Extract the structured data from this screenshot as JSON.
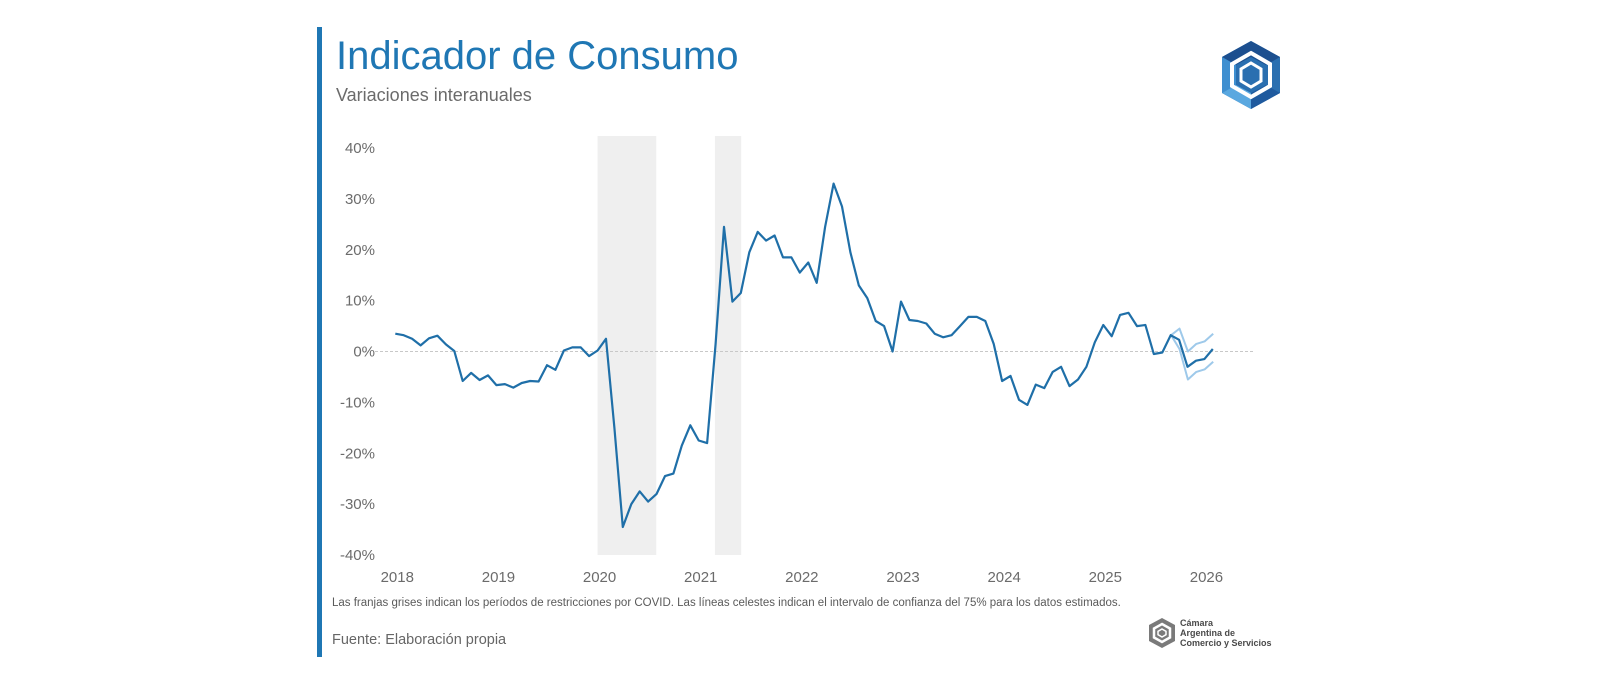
{
  "header": {
    "title": "Indicador de Consumo",
    "subtitle": "Variaciones interanuales"
  },
  "footer": {
    "note": "Las franjas grises indican los períodos de restricciones por COVID. Las líneas celestes indican el intervalo de confianza del 75% para los datos estimados.",
    "source": "Fuente: Elaboración propia",
    "logo_text_line1": "Cámara",
    "logo_text_line2": "Argentina de",
    "logo_text_line3": "Comercio y Servicios"
  },
  "colors": {
    "accent": "#1f77b4",
    "series": "#1f6fa8",
    "band": "#9ec9ea",
    "shade": "#efefef"
  },
  "chart_data": {
    "type": "line",
    "title": "Indicador de Consumo",
    "subtitle": "Variaciones interanuales",
    "xlabel": "",
    "ylabel": "",
    "ylim": [
      -40,
      40
    ],
    "yticks": [
      40,
      30,
      20,
      10,
      0,
      -10,
      -20,
      -30,
      -40
    ],
    "ytick_labels": [
      "40%",
      "30%",
      "20%",
      "10%",
      "0%",
      "-10%",
      "-20%",
      "-30%",
      "-40%"
    ],
    "xlim": [
      2017.75,
      2026.5
    ],
    "xticks": [
      2018,
      2019,
      2020,
      2021,
      2022,
      2023,
      2024,
      2025,
      2026
    ],
    "xtick_labels": [
      "2018",
      "2019",
      "2020",
      "2021",
      "2022",
      "2023",
      "2024",
      "2025",
      "2026"
    ],
    "shaded_periods": [
      {
        "start": 2020.0,
        "end": 2020.58,
        "label": "COVID"
      },
      {
        "start": 2021.16,
        "end": 2021.42,
        "label": "COVID"
      }
    ],
    "series": [
      {
        "name": "Indicador de Consumo",
        "start": 2018.0,
        "step": 0.08333,
        "values": [
          3.5,
          3.2,
          2.5,
          1.2,
          2.6,
          3.1,
          1.4,
          0.1,
          -5.8,
          -4.2,
          -5.6,
          -4.7,
          -6.6,
          -6.4,
          -7.1,
          -6.2,
          -5.8,
          -5.9,
          -2.7,
          -3.6,
          0.2,
          0.8,
          0.8,
          -0.9,
          0.2,
          2.5,
          -15.0,
          -34.5,
          -30.0,
          -27.5,
          -29.5,
          -28.0,
          -24.5,
          -24.0,
          -18.5,
          -14.5,
          -17.5,
          -18.0,
          1.5,
          24.5,
          9.8,
          11.5,
          19.5,
          23.5,
          21.8,
          22.8,
          18.5,
          18.5,
          15.5,
          17.5,
          13.5,
          24.5,
          33.0,
          28.5,
          19.5,
          13.0,
          10.5,
          6.0,
          5.0,
          0.0,
          9.8,
          6.2,
          6.0,
          5.5,
          3.5,
          2.8,
          3.2,
          5.0,
          6.8,
          6.8,
          6.0,
          1.5,
          -5.8,
          -4.8,
          -9.5,
          -10.5,
          -6.5,
          -7.2,
          -4.0,
          -3.0,
          -6.8,
          -5.5,
          -3.0,
          1.8,
          5.2,
          3.0,
          7.2,
          7.6,
          5.0,
          5.2,
          -0.5,
          -0.2,
          3.2,
          2.3,
          -3.0,
          -1.8,
          -1.5,
          0.5
        ]
      },
      {
        "name": "Intervalo de confianza 75% (superior)",
        "start": 2025.67,
        "step": 0.08333,
        "values": [
          3.2,
          4.5,
          0.0,
          1.5,
          2.0,
          3.5
        ]
      },
      {
        "name": "Intervalo de confianza 75% (inferior)",
        "start": 2025.67,
        "step": 0.08333,
        "values": [
          3.2,
          0.5,
          -5.5,
          -4.0,
          -3.5,
          -2.0
        ]
      }
    ]
  }
}
